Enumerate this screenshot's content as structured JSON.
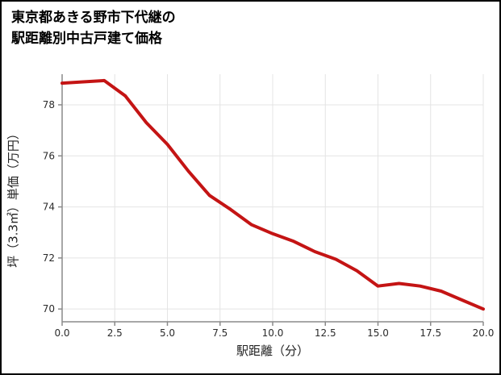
{
  "header": {
    "title_line1": "東京都あきる野市下代継の",
    "title_line2": "駅距離別中古戸建て価格"
  },
  "chart_data": {
    "type": "line",
    "title": "東京都あきる野市下代継の駅距離別中古戸建て価格",
    "xlabel": "駅距離（分）",
    "ylabel": "坪（3.3㎡）単価（万円）",
    "x": [
      0,
      1,
      2,
      3,
      4,
      5,
      6,
      7,
      8,
      9,
      10,
      11,
      12,
      13,
      14,
      15,
      16,
      17,
      18,
      19,
      20
    ],
    "y": [
      78.85,
      78.9,
      78.95,
      78.35,
      77.3,
      76.45,
      75.4,
      74.45,
      73.9,
      73.3,
      72.95,
      72.65,
      72.25,
      71.95,
      71.5,
      70.9,
      71.0,
      70.9,
      70.7,
      70.35,
      70.0
    ],
    "x_tick_labels": [
      "0.0",
      "2.5",
      "5.0",
      "7.5",
      "10.0",
      "12.5",
      "15.0",
      "17.5",
      "20.0"
    ],
    "x_ticks": [
      0,
      2.5,
      5,
      7.5,
      10,
      12.5,
      15,
      17.5,
      20
    ],
    "y_ticks": [
      70,
      72,
      74,
      76,
      78
    ],
    "y_tick_labels": [
      "70",
      "72",
      "74",
      "76",
      "78"
    ],
    "xlim": [
      0,
      20
    ],
    "ylim": [
      69.5,
      79.2
    ],
    "grid": true,
    "legend": "none",
    "line_color": "#c41414",
    "line_width": 4,
    "grid_color": "#e4e4e4",
    "axis_color": "#8a8a8a",
    "tick_label_color": "#2b2b2b"
  }
}
